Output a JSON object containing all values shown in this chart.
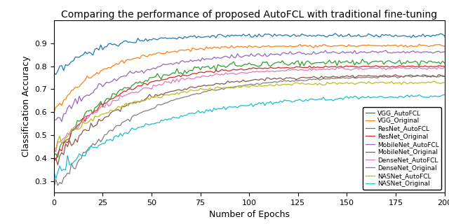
{
  "title": "Comparing the performance of proposed AutoFCL with traditional fine-tuning",
  "xlabel": "Number of Epochs",
  "ylabel": "Classification Accuracy",
  "xlim": [
    0,
    200
  ],
  "ylim": [
    0.25,
    1.0
  ],
  "yticks": [
    0.3,
    0.4,
    0.5,
    0.6,
    0.7,
    0.8,
    0.9
  ],
  "xticks": [
    0,
    25,
    50,
    75,
    100,
    125,
    150,
    175,
    200
  ],
  "series": [
    {
      "label": "VGG_AutoFCL",
      "color": "#1f77b4",
      "final": 0.933,
      "init": 0.75,
      "speed": 0.5,
      "noise_early": 0.012,
      "noise_late": 0.004
    },
    {
      "label": "VGG_Original",
      "color": "#ff7f0e",
      "final": 0.89,
      "init": 0.6,
      "speed": 0.4,
      "noise_early": 0.01,
      "noise_late": 0.003
    },
    {
      "label": "ResNet_AutoFCL",
      "color": "#2ca02c",
      "final": 0.82,
      "init": 0.4,
      "speed": 0.35,
      "noise_early": 0.015,
      "noise_late": 0.006
    },
    {
      "label": "ResNet_Original",
      "color": "#d62728",
      "final": 0.8,
      "init": 0.4,
      "speed": 0.35,
      "noise_early": 0.015,
      "noise_late": 0.002
    },
    {
      "label": "MobileNet_AutoFCL",
      "color": "#9467bd",
      "final": 0.862,
      "init": 0.55,
      "speed": 0.3,
      "noise_early": 0.018,
      "noise_late": 0.004
    },
    {
      "label": "MobileNet_Original",
      "color": "#8c564b",
      "final": 0.76,
      "init": 0.38,
      "speed": 0.28,
      "noise_early": 0.018,
      "noise_late": 0.003
    },
    {
      "label": "DenseNet_AutoFCL",
      "color": "#e377c2",
      "final": 0.792,
      "init": 0.43,
      "speed": 0.3,
      "noise_early": 0.016,
      "noise_late": 0.003
    },
    {
      "label": "DenseNet_Original",
      "color": "#7f7f7f",
      "final": 0.76,
      "init": 0.26,
      "speed": 0.25,
      "noise_early": 0.015,
      "noise_late": 0.002
    },
    {
      "label": "NASNet_AutoFCL",
      "color": "#bcbd22",
      "final": 0.73,
      "init": 0.45,
      "speed": 0.28,
      "noise_early": 0.012,
      "noise_late": 0.003
    },
    {
      "label": "NASNet_Original",
      "color": "#17becf",
      "final": 0.678,
      "init": 0.33,
      "speed": 0.2,
      "noise_early": 0.018,
      "noise_late": 0.004
    }
  ]
}
